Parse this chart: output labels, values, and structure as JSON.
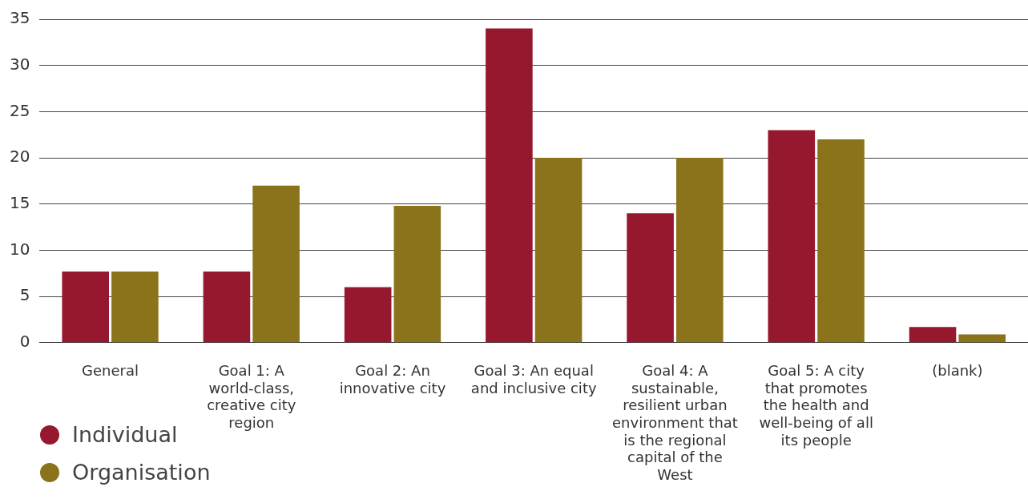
{
  "chart_data": {
    "type": "bar",
    "categories": [
      "General",
      "Goal 1: A world-class, creative city region",
      "Goal 2: An innovative city",
      "Goal 3: An equal and inclusive city",
      "Goal 4: A sustainable, resilient urban environment that is the regional capital of the West",
      "Goal 5: A city that promotes the health and well-being of all its people",
      "(blank)"
    ],
    "series": [
      {
        "name": "Individual",
        "color": "#95182f",
        "values": [
          7.7,
          7.7,
          6,
          34,
          14,
          23,
          1.7
        ]
      },
      {
        "name": "Organisation",
        "color": "#8b731b",
        "values": [
          7.7,
          17,
          14.8,
          20,
          20,
          22,
          0.9
        ]
      }
    ],
    "ylim": [
      0,
      35
    ],
    "yticks": [
      0,
      5,
      10,
      15,
      20,
      25,
      30,
      35
    ],
    "grid": "y",
    "legend": "bottom left"
  }
}
